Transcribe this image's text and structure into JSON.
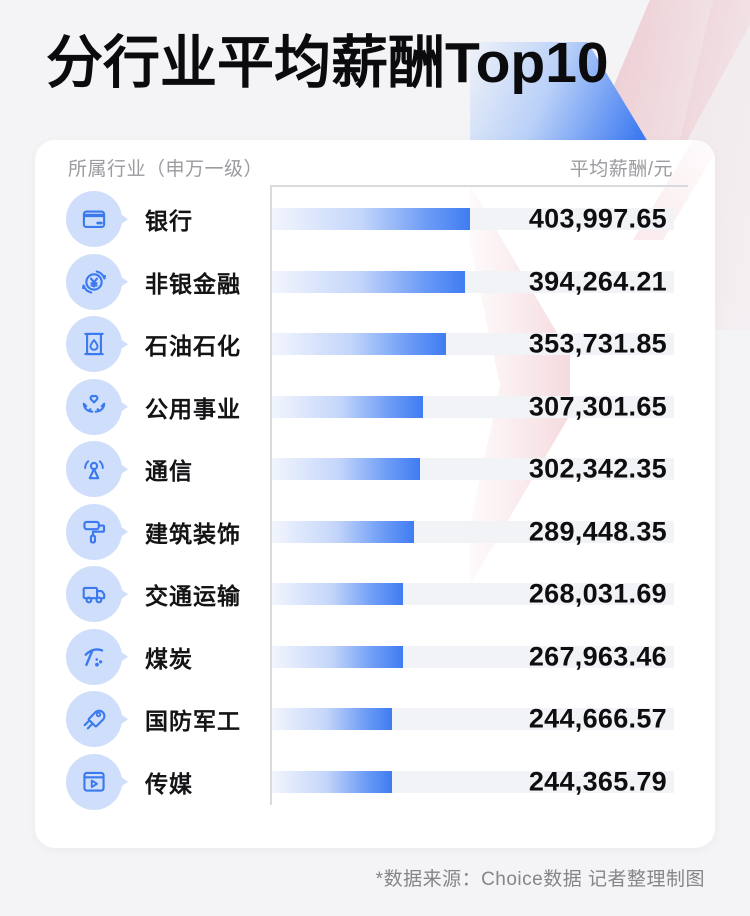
{
  "title": "分行业平均薪酬Top10",
  "table": {
    "header_left": "所属行业（申万一级）",
    "header_right": "平均薪酬/元"
  },
  "rows": [
    {
      "icon": "bank-card-icon",
      "label": "银行",
      "value": "403,997.65"
    },
    {
      "icon": "currency-exchange-icon",
      "label": "非银金融",
      "value": "394,264.21"
    },
    {
      "icon": "oil-barrel-icon",
      "label": "石油石化",
      "value": "353,731.85"
    },
    {
      "icon": "hands-heart-icon",
      "label": "公用事业",
      "value": "307,301.65"
    },
    {
      "icon": "broadcast-antenna-icon",
      "label": "通信",
      "value": "302,342.35"
    },
    {
      "icon": "paint-roller-icon",
      "label": "建筑装饰",
      "value": "289,448.35"
    },
    {
      "icon": "truck-icon",
      "label": "交通运输",
      "value": "268,031.69"
    },
    {
      "icon": "pickaxe-icon",
      "label": "煤炭",
      "value": "267,963.46"
    },
    {
      "icon": "missile-icon",
      "label": "国防军工",
      "value": "244,666.57"
    },
    {
      "icon": "video-player-icon",
      "label": "传媒",
      "value": "244,365.79"
    }
  ],
  "footer": {
    "note": "*数据来源：Choice数据 记者整理制图"
  },
  "colors": {
    "page_bg": "#f4f4f6",
    "card_bg": "#ffffff",
    "bar_blue": "#3f7cf2",
    "bar_track": "#f2f3f6",
    "icon_bubble": "#cfdefa",
    "icon_stroke": "#3a79ee",
    "header_gray": "#9b9ba0",
    "deco_pink": "#e59ea8",
    "deco_blue": "#3e7bf1"
  },
  "chart_data": {
    "type": "bar",
    "orientation": "horizontal",
    "title": "分行业平均薪酬Top10",
    "xlabel": "平均薪酬/元",
    "ylabel": "所属行业（申万一级）",
    "categories": [
      "银行",
      "非银金融",
      "石油石化",
      "公用事业",
      "通信",
      "建筑装饰",
      "交通运输",
      "煤炭",
      "国防军工",
      "传媒"
    ],
    "values": [
      403997.65,
      394264.21,
      353731.85,
      307301.65,
      302342.35,
      289448.35,
      268031.69,
      267963.46,
      244666.57,
      244365.79
    ],
    "value_labels": [
      "403,997.65",
      "394,264.21",
      "353,731.85",
      "307,301.65",
      "302,342.35",
      "289,448.35",
      "268,031.69",
      "267,963.46",
      "244,666.57",
      "244,365.79"
    ],
    "max_bar_fraction_of_track": 0.493,
    "grid": false,
    "legend": false,
    "sorted": "descending"
  }
}
